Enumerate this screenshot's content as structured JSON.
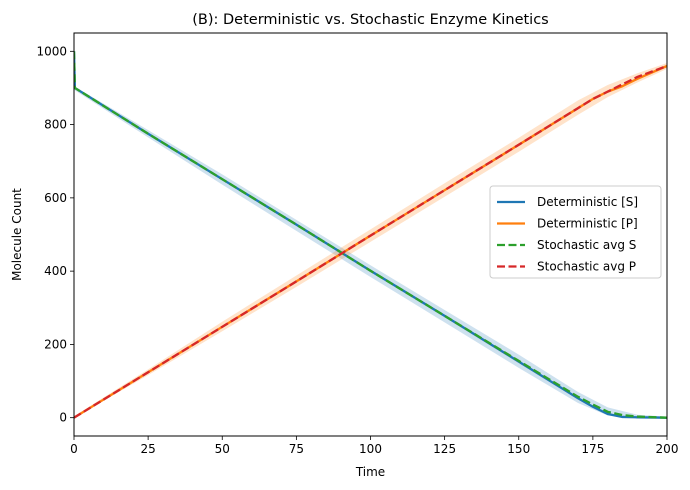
{
  "chart_data": {
    "type": "line",
    "title": "(B): Deterministic vs. Stochastic Enzyme Kinetics",
    "xlabel": "Time",
    "ylabel": "Molecule Count",
    "xlim": [
      0,
      200
    ],
    "ylim": [
      -50,
      1050
    ],
    "xticks": [
      0,
      25,
      50,
      75,
      100,
      125,
      150,
      175,
      200
    ],
    "yticks": [
      0,
      200,
      400,
      600,
      800,
      1000
    ],
    "grid": false,
    "legend_position": "center-right",
    "series": [
      {
        "name": "Deterministic [S]",
        "style": "solid",
        "color": "#1f77b4",
        "x": [
          0,
          0.3,
          25,
          50,
          75,
          100,
          125,
          150,
          170,
          175,
          180,
          185,
          190,
          200
        ],
        "y": [
          1000,
          900,
          775,
          651,
          527,
          401,
          278,
          153,
          53,
          30,
          10,
          2,
          1,
          0
        ]
      },
      {
        "name": "Deterministic [P]",
        "style": "solid",
        "color": "#ff7f0e",
        "x": [
          0,
          25,
          50,
          75,
          100,
          125,
          150,
          170,
          175,
          180,
          185,
          190,
          200
        ],
        "y": [
          0,
          124,
          248,
          372,
          497,
          621,
          745,
          845,
          870,
          890,
          905,
          925,
          960
        ]
      },
      {
        "name": "Stochastic avg S",
        "style": "dashed",
        "color": "#2ca02c",
        "x": [
          0,
          0.3,
          25,
          50,
          75,
          100,
          125,
          150,
          170,
          175,
          180,
          185,
          190,
          200
        ],
        "y": [
          1000,
          900,
          775,
          651,
          527,
          401,
          278,
          155,
          57,
          36,
          16,
          7,
          3,
          0
        ]
      },
      {
        "name": "Stochastic avg P",
        "style": "dashed",
        "color": "#d62728",
        "x": [
          0,
          25,
          50,
          75,
          100,
          125,
          150,
          170,
          175,
          180,
          185,
          190,
          200
        ],
        "y": [
          0,
          124,
          248,
          372,
          497,
          621,
          745,
          845,
          870,
          890,
          910,
          930,
          960
        ]
      }
    ],
    "bands": [
      {
        "color": "#1f77b4",
        "opacity": 0.22,
        "x": [
          0,
          25,
          50,
          75,
          100,
          125,
          150,
          170,
          180,
          190,
          200
        ],
        "lower": [
          895,
          765,
          636,
          510,
          384,
          260,
          136,
          40,
          6,
          0,
          0
        ],
        "upper": [
          905,
          785,
          664,
          540,
          416,
          294,
          172,
          70,
          28,
          8,
          3
        ]
      },
      {
        "color": "#ff7f0e",
        "opacity": 0.22,
        "x": [
          0,
          25,
          50,
          75,
          100,
          125,
          150,
          170,
          180,
          190,
          200
        ],
        "lower": [
          0,
          116,
          236,
          357,
          480,
          603,
          726,
          827,
          875,
          915,
          952
        ],
        "upper": [
          4,
          132,
          262,
          388,
          514,
          640,
          764,
          866,
          908,
          940,
          968
        ]
      }
    ]
  }
}
